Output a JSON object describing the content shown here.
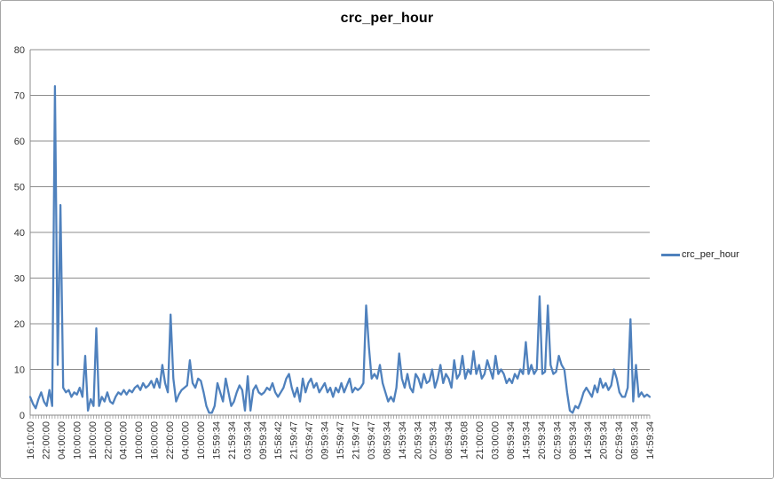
{
  "window": {
    "background": "#ffffff",
    "border_color": "#a6a6a6"
  },
  "legend": {
    "label": "crc_per_hour",
    "swatch_color": "#4F81BD"
  },
  "chart_data": {
    "type": "line",
    "title": "crc_per_hour",
    "xlabel": "",
    "ylabel": "",
    "ylim": [
      0,
      80
    ],
    "y_ticks": [
      0,
      10,
      20,
      30,
      40,
      50,
      60,
      70,
      80
    ],
    "grid": "horizontal-major",
    "gridline_color": "#8c8c8c",
    "axis_color": "#8c8c8c",
    "text_color": "#333333",
    "legend_position": "right",
    "x_tick_labels": [
      "16:10:00",
      "22:00:00",
      "04:00:00",
      "10:00:00",
      "16:00:00",
      "22:00:00",
      "04:00:00",
      "10:00:00",
      "16:00:00",
      "22:00:00",
      "04:00:00",
      "10:00:00",
      "15:59:34",
      "21:59:34",
      "03:59:34",
      "09:59:34",
      "15:58:42",
      "21:59:47",
      "03:59:47",
      "09:59:34",
      "15:59:47",
      "21:59:47",
      "03:59:47",
      "08:59:34",
      "14:59:34",
      "20:59:34",
      "02:59:34",
      "08:59:34",
      "14:59:08",
      "21:00:00",
      "03:00:00",
      "08:59:34",
      "14:59:34",
      "20:59:34",
      "02:59:34",
      "08:59:34",
      "14:59:34",
      "20:59:34",
      "02:59:34",
      "08:59:34",
      "14:59:34"
    ],
    "series": [
      {
        "name": "crc_per_hour",
        "color": "#4F81BD",
        "values": [
          4,
          2.5,
          1.5,
          3.5,
          5,
          3,
          2,
          5.5,
          2,
          72,
          11,
          46,
          6,
          5,
          5.5,
          4,
          5,
          4.5,
          6,
          4,
          13,
          1,
          3.5,
          2,
          19,
          2,
          4,
          3,
          5,
          3,
          2.5,
          4,
          5,
          4.5,
          5.5,
          4.5,
          5.5,
          5,
          6,
          6.5,
          5.5,
          7,
          6,
          6.5,
          7.5,
          6,
          8,
          6,
          11,
          7,
          5,
          22,
          8,
          3,
          4.5,
          5.5,
          6,
          6.5,
          12,
          7,
          6,
          8,
          7.5,
          5,
          2,
          0.5,
          0.5,
          2,
          7,
          5,
          3,
          8,
          5,
          2,
          3,
          5,
          6.5,
          5.5,
          1,
          8.5,
          1,
          5.5,
          6.5,
          5,
          4.5,
          5,
          6,
          5.5,
          7,
          5,
          4,
          5,
          6,
          8,
          9,
          6,
          4,
          6,
          3,
          8,
          5,
          7,
          8,
          6,
          7,
          5,
          6,
          7,
          5,
          6,
          4,
          6,
          5,
          7,
          5,
          6.5,
          8,
          5,
          6,
          5.5,
          6,
          7,
          24,
          15,
          8,
          9,
          8,
          11,
          7,
          5,
          3,
          4,
          3,
          6,
          13.5,
          8,
          6,
          9,
          6,
          5,
          9,
          8,
          6,
          9,
          7,
          7.5,
          10,
          6,
          8,
          11,
          7,
          9,
          8,
          6,
          12,
          8,
          9,
          13,
          8,
          10,
          9,
          14,
          9,
          11,
          8,
          9,
          12,
          10,
          8,
          13,
          9,
          10,
          9,
          7,
          8,
          7,
          9,
          8,
          10,
          9,
          16,
          9,
          11,
          9,
          10,
          26,
          9,
          9.5,
          24,
          11,
          9,
          9.5,
          13,
          11,
          10,
          5,
          1,
          0.5,
          2,
          1.5,
          3,
          5,
          6,
          5,
          4,
          6.5,
          5,
          8,
          6,
          7,
          5.5,
          6.5,
          10,
          8,
          5,
          4,
          4,
          6,
          21,
          3,
          11,
          4,
          5,
          4,
          4.5,
          4
        ]
      }
    ]
  }
}
